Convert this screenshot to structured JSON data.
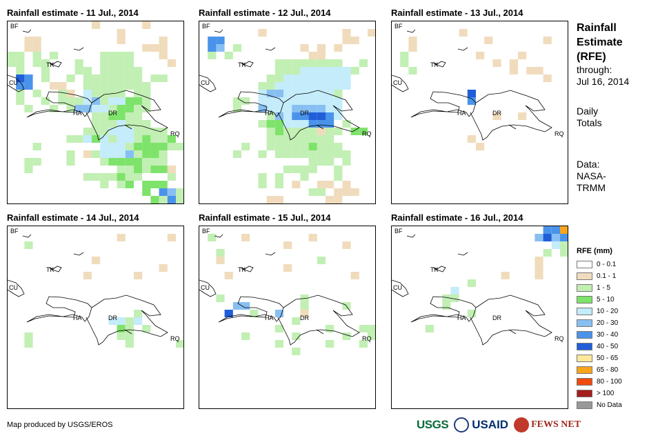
{
  "panels": [
    {
      "title": "Rainfall estimate - 11 Jul., 2014"
    },
    {
      "title": "Rainfall estimate - 12 Jul., 2014"
    },
    {
      "title": "Rainfall estimate - 13 Jul., 2014"
    },
    {
      "title": "Rainfall estimate - 14 Jul., 2014"
    },
    {
      "title": "Rainfall estimate - 15 Jul., 2014"
    },
    {
      "title": "Rainfall estimate - 16 Jul., 2014"
    }
  ],
  "map_labels": {
    "bf": "BF",
    "tk": "TK",
    "cu": "CU",
    "ha": "HA",
    "dr": "DR",
    "rq": "RQ"
  },
  "side": {
    "title_line1": "Rainfall",
    "title_line2": "Estimate",
    "title_line3": "(RFE)",
    "through_label": "through:",
    "through_date": "Jul 16, 2014",
    "totals_line1": "Daily",
    "totals_line2": "Totals",
    "data_label": "Data:",
    "data_source_line1": "NASA-",
    "data_source_line2": "TRMM"
  },
  "legend": {
    "title": "RFE (mm)",
    "items": [
      {
        "label": "0 - 0.1",
        "color": "#ffffff"
      },
      {
        "label": "0.1 - 1",
        "color": "#f0dcbc"
      },
      {
        "label": "1 - 5",
        "color": "#c2efb4"
      },
      {
        "label": "5 - 10",
        "color": "#7ee36a"
      },
      {
        "label": "10 - 20",
        "color": "#c4ecfa"
      },
      {
        "label": "20 - 30",
        "color": "#88bff2"
      },
      {
        "label": "30 - 40",
        "color": "#4a93ea"
      },
      {
        "label": "40 - 50",
        "color": "#1f5ed8"
      },
      {
        "label": "50 - 65",
        "color": "#fde89a"
      },
      {
        "label": "65 - 80",
        "color": "#f8a51c"
      },
      {
        "label": "80 - 100",
        "color": "#f04a0e"
      },
      {
        "label": "> 100",
        "color": "#a51d1d"
      },
      {
        "label": "No Data",
        "color": "#999999"
      }
    ]
  },
  "footer": {
    "credit": "Map produced by USGS/EROS"
  },
  "logos": {
    "usgs": "USGS",
    "usaid": "USAID",
    "fews": "FEWS NET"
  }
}
